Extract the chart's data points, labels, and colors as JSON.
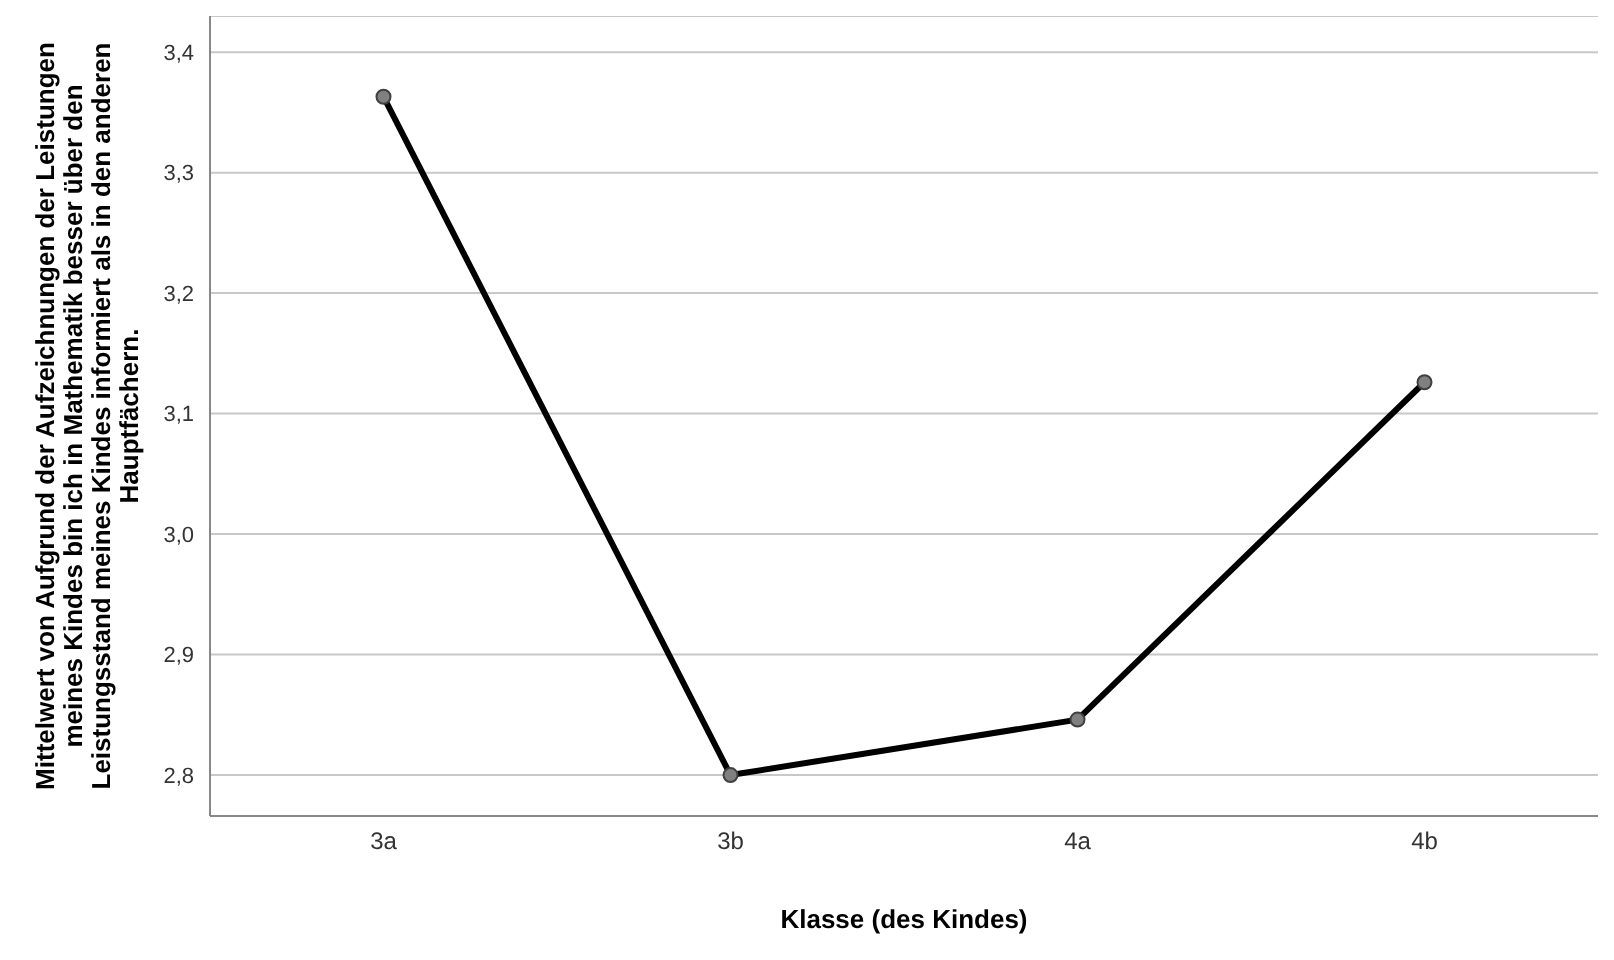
{
  "chart_data": {
    "type": "line",
    "xlabel": "Klasse (des Kindes)",
    "ylabel": "Mittelwert von Aufgrund der Aufzeichnungen der Leistungen meines Kindes bin ich in Mathematik besser über den Leistungsstand meines Kindes informiert als in den anderen Hauptfächern.",
    "categories": [
      "3a",
      "3b",
      "4a",
      "4b"
    ],
    "series": [
      {
        "color": "#000000",
        "values": [
          3.363,
          2.8,
          2.846,
          3.126
        ]
      }
    ],
    "ylim": [
      2.766,
      3.43
    ],
    "yticks": [
      {
        "value": 2.8,
        "label": "2,8"
      },
      {
        "value": 2.9,
        "label": "2,9"
      },
      {
        "value": 3.0,
        "label": "3,0"
      },
      {
        "value": 3.1,
        "label": "3,1"
      },
      {
        "value": 3.2,
        "label": "3,2"
      },
      {
        "value": 3.3,
        "label": "3,3"
      },
      {
        "value": 3.4,
        "label": "3,4"
      }
    ],
    "grid": "y",
    "marker": "circle",
    "line_style": "solid"
  }
}
